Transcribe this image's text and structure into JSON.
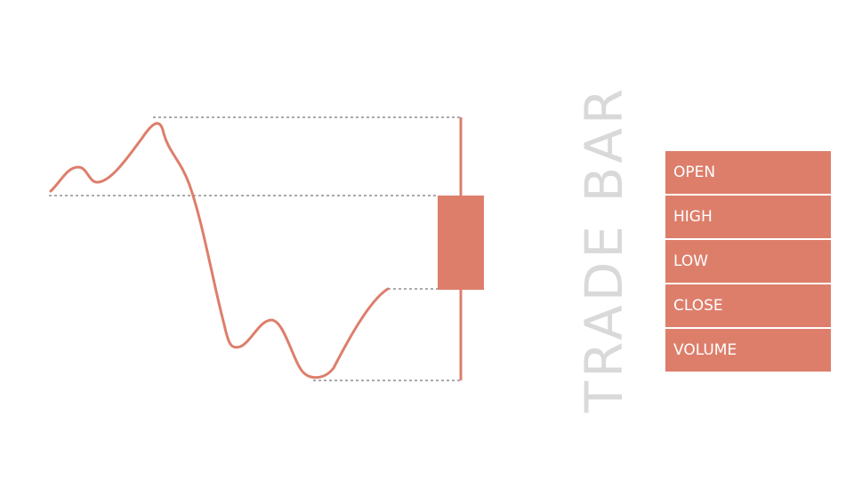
{
  "title": "TRADE BAR",
  "fields": [
    "OPEN",
    "HIGH",
    "LOW",
    "CLOSE",
    "VOLUME"
  ],
  "colors": {
    "accent": "#dd7e6b",
    "title": "#d9d9d9",
    "guide": "#555555"
  }
}
